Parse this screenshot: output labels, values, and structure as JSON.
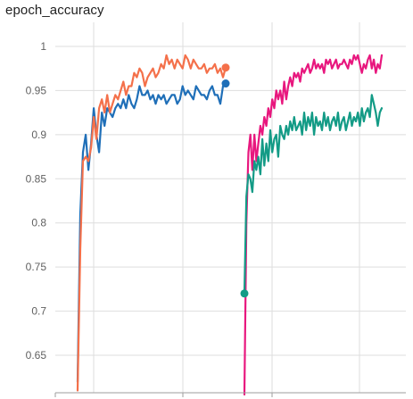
{
  "card": {
    "title": "epoch_accuracy"
  },
  "chart_data": [
    {
      "type": "line",
      "title": "epoch_accuracy",
      "xlabel": "",
      "ylabel": "",
      "ylim": [
        0.61,
        1.04
      ],
      "y_ticks": [
        "0.65",
        "0.7",
        "0.75",
        "0.8",
        "0.85",
        "0.9",
        "0.95",
        "1"
      ],
      "x_ticks": [],
      "grid": true,
      "legend": "none",
      "series": [
        {
          "color": "#1f6fb8",
          "end_marker": true,
          "x": [
            0,
            1,
            2,
            3,
            4,
            5,
            6,
            7,
            8,
            9,
            10,
            11,
            12,
            13,
            14,
            15,
            16,
            17,
            18,
            19,
            20,
            21,
            22,
            23,
            24,
            25,
            26,
            27,
            28,
            29,
            30,
            31,
            32,
            33,
            34,
            35,
            36,
            37,
            38,
            39,
            40,
            41,
            42,
            43,
            44,
            45,
            46,
            47,
            48,
            49,
            50,
            51,
            52,
            53,
            54,
            55
          ],
          "values": [
            0.62,
            0.81,
            0.88,
            0.9,
            0.86,
            0.89,
            0.93,
            0.9,
            0.88,
            0.925,
            0.91,
            0.93,
            0.925,
            0.92,
            0.93,
            0.935,
            0.93,
            0.94,
            0.93,
            0.945,
            0.935,
            0.93,
            0.94,
            0.955,
            0.945,
            0.945,
            0.95,
            0.94,
            0.945,
            0.935,
            0.945,
            0.94,
            0.945,
            0.935,
            0.94,
            0.945,
            0.945,
            0.935,
            0.94,
            0.955,
            0.945,
            0.95,
            0.945,
            0.94,
            0.955,
            0.95,
            0.945,
            0.945,
            0.94,
            0.95,
            0.955,
            0.945,
            0.945,
            0.935,
            0.955,
            0.958
          ]
        },
        {
          "color": "#f4704a",
          "end_marker": true,
          "x": [
            0,
            1,
            2,
            3,
            4,
            5,
            6,
            7,
            8,
            9,
            10,
            11,
            12,
            13,
            14,
            15,
            16,
            17,
            18,
            19,
            20,
            21,
            22,
            23,
            24,
            25,
            26,
            27,
            28,
            29,
            30,
            31,
            32,
            33,
            34,
            35,
            36,
            37,
            38,
            39,
            40,
            41,
            42,
            43,
            44,
            45,
            46,
            47,
            48,
            49,
            50,
            51,
            52,
            53,
            54,
            55
          ],
          "values": [
            0.61,
            0.77,
            0.87,
            0.875,
            0.87,
            0.885,
            0.92,
            0.895,
            0.93,
            0.94,
            0.925,
            0.945,
            0.925,
            0.935,
            0.945,
            0.94,
            0.95,
            0.96,
            0.945,
            0.955,
            0.955,
            0.97,
            0.965,
            0.975,
            0.97,
            0.955,
            0.965,
            0.97,
            0.975,
            0.965,
            0.97,
            0.98,
            0.975,
            0.99,
            0.98,
            0.985,
            0.975,
            0.985,
            0.98,
            0.975,
            0.99,
            0.985,
            0.975,
            0.985,
            0.98,
            0.975,
            0.975,
            0.98,
            0.97,
            0.975,
            0.975,
            0.98,
            0.97,
            0.975,
            0.965,
            0.976
          ]
        },
        {
          "color": "#e8177e",
          "end_marker": false,
          "x": [
            0,
            1,
            2,
            3,
            4,
            5,
            6,
            7,
            8,
            9,
            10,
            11,
            12,
            13,
            14,
            15,
            16,
            17,
            18,
            19,
            20,
            21,
            22,
            23,
            24,
            25,
            26,
            27,
            28,
            29,
            30,
            31,
            32,
            33,
            34,
            35,
            36,
            37,
            38,
            39,
            40,
            41,
            42,
            43,
            44,
            45,
            46,
            47,
            48,
            49,
            50,
            51,
            52,
            53,
            54,
            55,
            56,
            57,
            58,
            59,
            60,
            61,
            62,
            63,
            64,
            65,
            66,
            67,
            68,
            69
          ],
          "values": [
            0.6,
            0.8,
            0.88,
            0.9,
            0.86,
            0.9,
            0.87,
            0.89,
            0.91,
            0.9,
            0.92,
            0.91,
            0.93,
            0.92,
            0.94,
            0.93,
            0.95,
            0.94,
            0.95,
            0.935,
            0.96,
            0.94,
            0.955,
            0.965,
            0.955,
            0.97,
            0.965,
            0.97,
            0.96,
            0.975,
            0.97,
            0.975,
            0.98,
            0.97,
            0.975,
            0.985,
            0.975,
            0.98,
            0.975,
            0.98,
            0.97,
            0.985,
            0.98,
            0.985,
            0.975,
            0.98,
            0.985,
            0.975,
            0.98,
            0.98,
            0.985,
            0.98,
            0.975,
            0.985,
            0.98,
            0.99,
            0.985,
            0.99,
            0.98,
            0.97,
            0.98,
            0.975,
            0.985,
            0.99,
            0.975,
            0.985,
            0.97,
            0.98,
            0.975,
            0.99
          ]
        },
        {
          "color": "#139b86",
          "end_marker": false,
          "start_marker": true,
          "x": [
            0,
            1,
            2,
            3,
            4,
            5,
            6,
            7,
            8,
            9,
            10,
            11,
            12,
            13,
            14,
            15,
            16,
            17,
            18,
            19,
            20,
            21,
            22,
            23,
            24,
            25,
            26,
            27,
            28,
            29,
            30,
            31,
            32,
            33,
            34,
            35,
            36,
            37,
            38,
            39,
            40,
            41,
            42,
            43,
            44,
            45,
            46,
            47,
            48,
            49,
            50,
            51,
            52,
            53,
            54,
            55,
            56,
            57,
            58,
            59,
            60,
            61,
            62,
            63,
            64,
            65,
            66,
            67,
            68,
            69
          ],
          "values": [
            0.72,
            0.83,
            0.855,
            0.85,
            0.835,
            0.87,
            0.86,
            0.875,
            0.855,
            0.895,
            0.865,
            0.89,
            0.87,
            0.905,
            0.88,
            0.895,
            0.9,
            0.875,
            0.91,
            0.9,
            0.895,
            0.91,
            0.9,
            0.915,
            0.905,
            0.92,
            0.905,
            0.91,
            0.915,
            0.9,
            0.925,
            0.905,
            0.92,
            0.91,
            0.925,
            0.9,
            0.92,
            0.91,
            0.915,
            0.905,
            0.925,
            0.91,
            0.92,
            0.905,
            0.915,
            0.92,
            0.91,
            0.925,
            0.905,
            0.915,
            0.92,
            0.905,
            0.915,
            0.925,
            0.91,
            0.92,
            0.915,
            0.925,
            0.91,
            0.93,
            0.915,
            0.925,
            0.93,
            0.92,
            0.945,
            0.935,
            0.925,
            0.91,
            0.925,
            0.93
          ]
        }
      ]
    }
  ]
}
